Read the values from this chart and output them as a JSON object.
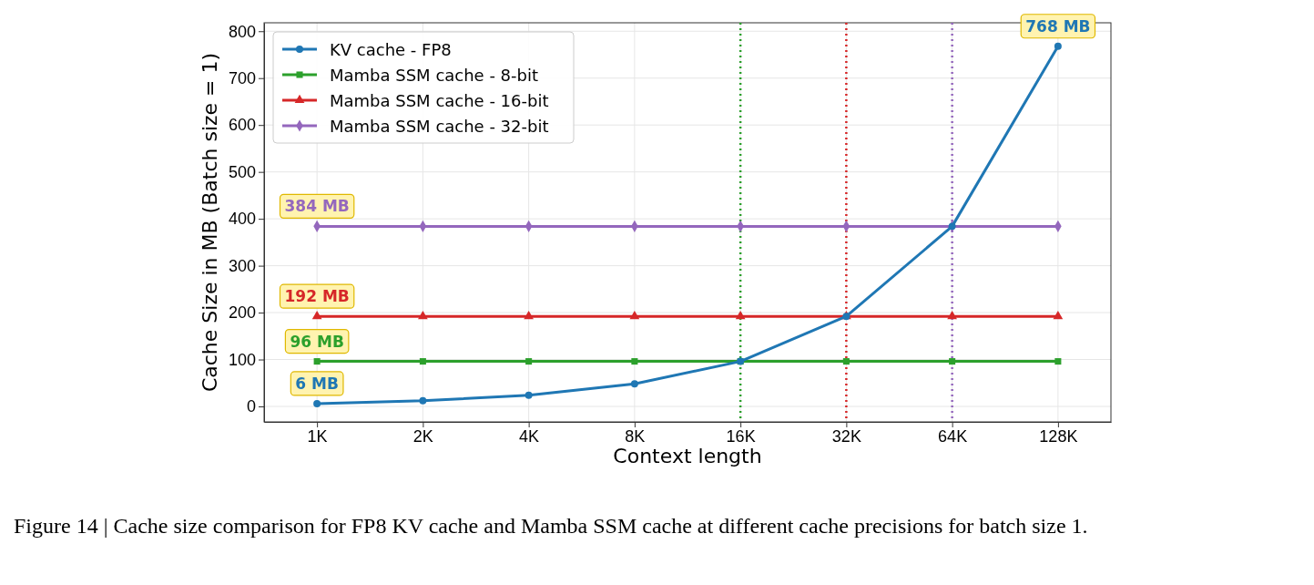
{
  "chart_data": {
    "type": "line",
    "xlabel": "Context length",
    "ylabel": "Cache Size in MB (Batch size = 1)",
    "categories": [
      "1K",
      "2K",
      "4K",
      "8K",
      "16K",
      "32K",
      "64K",
      "128K"
    ],
    "series": [
      {
        "name": "KV cache - FP8",
        "color": "#1f77b4",
        "marker": "circle",
        "values": [
          6,
          12,
          24,
          48,
          96,
          192,
          384,
          768
        ]
      },
      {
        "name": "Mamba SSM cache - 8-bit",
        "color": "#2ca02c",
        "marker": "square",
        "values": [
          96,
          96,
          96,
          96,
          96,
          96,
          96,
          96
        ]
      },
      {
        "name": "Mamba SSM cache - 16-bit",
        "color": "#d62728",
        "marker": "triangle",
        "values": [
          192,
          192,
          192,
          192,
          192,
          192,
          192,
          192
        ]
      },
      {
        "name": "Mamba SSM cache - 32-bit",
        "color": "#9467bd",
        "marker": "diamond",
        "values": [
          384,
          384,
          384,
          384,
          384,
          384,
          384,
          384
        ]
      }
    ],
    "ylim": [
      -33,
      818
    ],
    "yticks": [
      0,
      100,
      200,
      300,
      400,
      500,
      600,
      700,
      800
    ],
    "grid": true,
    "legend": "top left",
    "line_style": "solid",
    "ref_lines": [
      {
        "axis": "x",
        "value": "16K",
        "color": "#2ca02c",
        "line_style": "dotted"
      },
      {
        "axis": "x",
        "value": "32K",
        "color": "#d62728",
        "line_style": "dotted"
      },
      {
        "axis": "x",
        "value": "64K",
        "color": "#9467bd",
        "line_style": "dotted"
      }
    ],
    "annotations": [
      {
        "text": "6 MB",
        "x": "1K",
        "y": 6
      },
      {
        "text": "96 MB",
        "x": "1K",
        "y": 96
      },
      {
        "text": "192 MB",
        "x": "1K",
        "y": 192
      },
      {
        "text": "384 MB",
        "x": "1K",
        "y": 384
      },
      {
        "text": "768 MB",
        "x": "128K",
        "y": 768
      },
      "Figure 14 | Cache size comparison for FP8 KV cache and Mamba SSM cache at different cache precisions for batch size 1."
    ]
  }
}
